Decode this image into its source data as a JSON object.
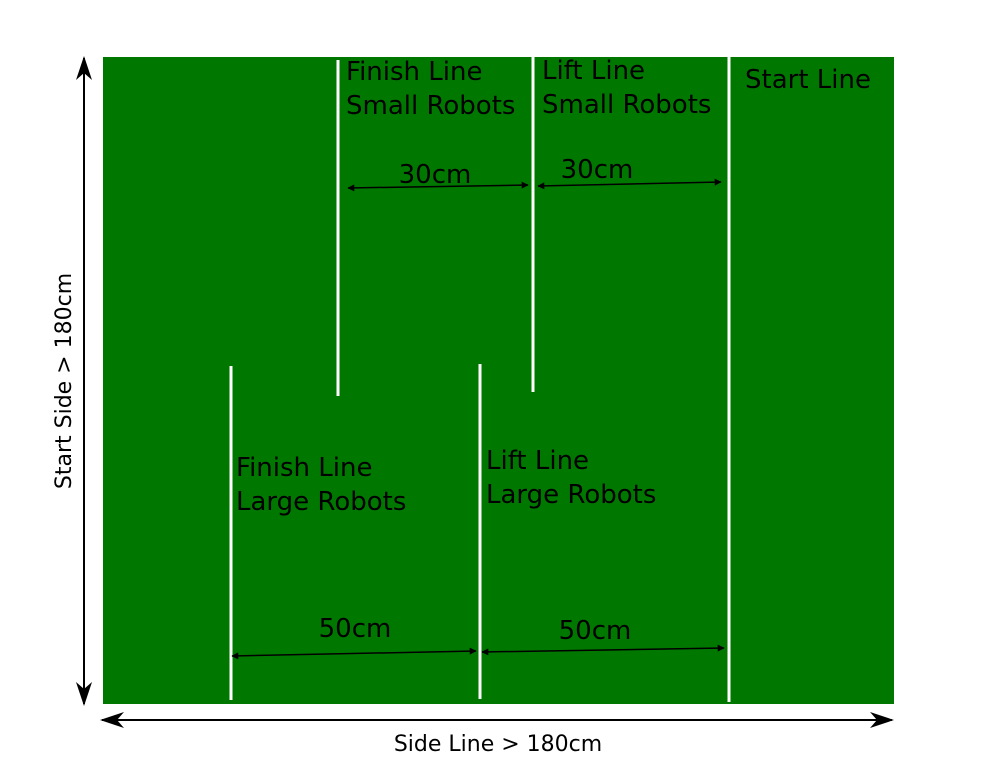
{
  "colors": {
    "field": "#007800",
    "lines": "#ffffff",
    "ink": "#000000"
  },
  "labels": {
    "finish_small_1": "Finish Line",
    "finish_small_2": "Small Robots",
    "lift_small_1": "Lift Line",
    "lift_small_2": "Small Robots",
    "start": "Start Line",
    "finish_large_1": "Finish Line",
    "finish_large_2": "Large Robots",
    "lift_large_1": "Lift Line",
    "lift_large_2": "Large Robots"
  },
  "dimensions": {
    "small_finish_to_lift": "30cm",
    "small_lift_to_start": "30cm",
    "large_finish_to_lift": "50cm",
    "large_lift_to_start": "50cm",
    "start_side": "Start Side > 180cm",
    "side_line": "Side Line > 180cm"
  }
}
